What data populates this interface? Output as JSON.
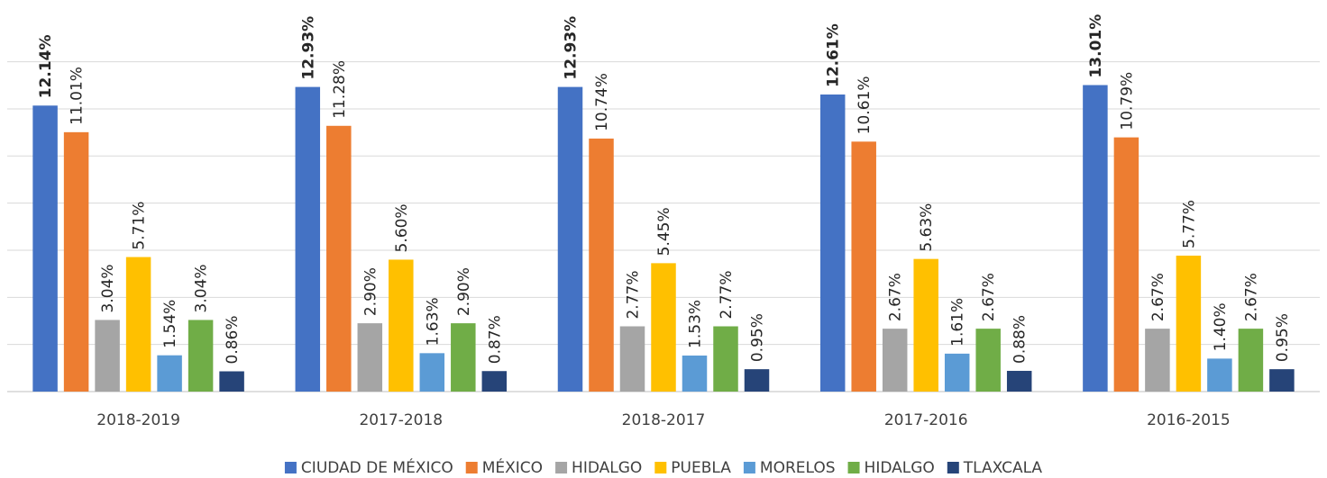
{
  "chart_data": {
    "type": "bar",
    "categories": [
      "2018-2019",
      "2017-2018",
      "2018-2017",
      "2017-2016",
      "2016-2015"
    ],
    "ylim": [
      0,
      14
    ],
    "grid": true,
    "legend_position": "bottom",
    "value_suffix": "%",
    "series": [
      {
        "name": "CIUDAD DE MÉXICO",
        "color": "#4472c4",
        "bold_labels": true,
        "values": [
          12.14,
          12.93,
          12.93,
          12.61,
          13.01
        ]
      },
      {
        "name": "MÉXICO",
        "color": "#ed7d31",
        "bold_labels": false,
        "values": [
          11.01,
          11.28,
          10.74,
          10.61,
          10.79
        ]
      },
      {
        "name": "HIDALGO",
        "color": "#a5a5a5",
        "bold_labels": false,
        "values": [
          3.04,
          2.9,
          2.77,
          2.67,
          2.67
        ]
      },
      {
        "name": "PUEBLA",
        "color": "#ffc000",
        "bold_labels": false,
        "values": [
          5.71,
          5.6,
          5.45,
          5.63,
          5.77
        ]
      },
      {
        "name": "MORELOS",
        "color": "#5b9bd5",
        "bold_labels": false,
        "values": [
          1.54,
          1.63,
          1.53,
          1.61,
          1.4
        ]
      },
      {
        "name": "HIDALGO",
        "color": "#70ad47",
        "bold_labels": false,
        "values": [
          3.04,
          2.9,
          2.77,
          2.67,
          2.67
        ]
      },
      {
        "name": "TLAXCALA",
        "color": "#264478",
        "bold_labels": false,
        "values": [
          0.86,
          0.87,
          0.95,
          0.88,
          0.95
        ]
      }
    ]
  }
}
